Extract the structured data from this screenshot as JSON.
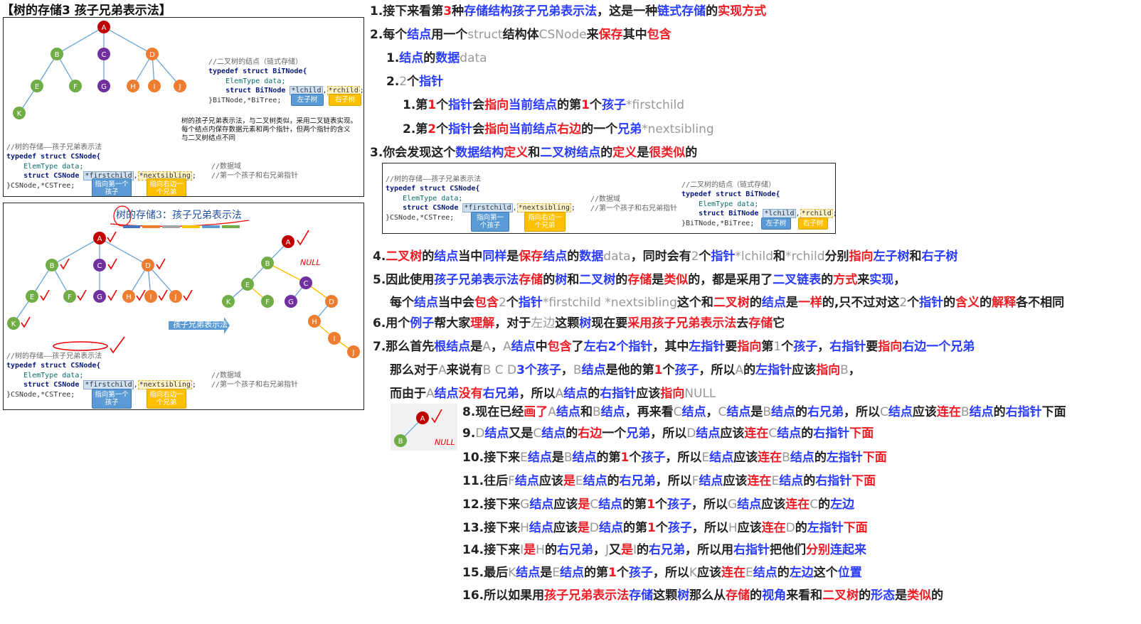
{
  "title": "【树的存储3 孩子兄弟表示法】",
  "panel1": {
    "bitree_comment": "//二叉树的结点（链式存储）",
    "bitree_struct": "typedef struct BiTNode{",
    "bitree_data": "    ElemType data;",
    "bitree_ptr_prefix": "    struct BiTNode ",
    "bitree_lchild": "*lchild",
    "bitree_rchild": "*rchild",
    "bitree_end": "}BiTNode,*BiTree;",
    "tag_left": "左子树",
    "tag_right": "右子树",
    "desc_line1": "树的孩子兄弟表示法，与二叉树类似，采用二叉链表实现。",
    "desc_line2": "每个结点内保存数据元素和两个指针，但两个指针的含义",
    "desc_line3": "与二叉树结点不同",
    "cs_comment": "//树的存储——孩子兄弟表示法",
    "cs_struct": "typedef struct CSNode{",
    "cs_data": "    ElemType data;",
    "cs_ptr_prefix": "    struct CSNode ",
    "cs_first": "*firstchild",
    "cs_next": "*nextsibling",
    "cs_end": "}CSNode,*CSTree;",
    "cs_data_comment": "//数据域",
    "cs_ptr_comment": "//第一个孩子和右兄弟指针",
    "tag_first": "指向第一个孩子",
    "tag_next": "指向右边一个兄弟"
  },
  "panel2": {
    "heading": "树的存储3：孩子兄弟表示法",
    "arrow_label": "孩子兄弟表示法",
    "null_label": "NULL"
  },
  "tree_nodes": [
    "A",
    "B",
    "C",
    "D",
    "E",
    "F",
    "G",
    "H",
    "I",
    "J",
    "K"
  ],
  "colors": {
    "node_a": "#c00000",
    "node_b": "#70ad47",
    "node_c": "#7030a0",
    "node_d": "#ed7d31",
    "link_blue": "#5b9bd5",
    "link_yellow": "#ffc000",
    "text_blue": "#2a3cff",
    "text_red": "#ee1c25"
  },
  "mini_panel": {
    "comment": "//树的存储——孩子兄弟表示法",
    "struct": "typedef struct CSNode{",
    "data": "    ElemType data;",
    "ptr_prefix": "    struct CSNode ",
    "first": "*firstchild",
    "next": "*nextsibling",
    "end": "}CSNode,*CSTree;",
    "data_comment": "//数据域",
    "ptr_comment": "//第一个孩子和右兄弟指针",
    "tag_first": "指向第一个孩子",
    "tag_next": "指向右边一个兄弟",
    "bi_comment": "//二叉树的结点（链式存储）",
    "bi_struct": "typedef struct BiTNode{",
    "bi_data": "    ElemType data;",
    "bi_prefix": "    struct BiTNode ",
    "bi_l": "*lchild",
    "bi_r": "*rchild",
    "bi_end": "}BiTNode,*BiTree;",
    "tag_left": "左子树",
    "tag_right": "右子树"
  },
  "notes": {
    "l1": [
      [
        "1.接下来看第",
        ""
      ],
      [
        "3",
        "r"
      ],
      [
        "种",
        ""
      ],
      [
        "存储结构孩子兄弟表示法",
        "b"
      ],
      [
        "，这是一种",
        ""
      ],
      [
        "链式存储",
        "b"
      ],
      [
        "的",
        ""
      ],
      [
        "实现方式",
        "r"
      ]
    ],
    "l2": [
      [
        "2.每个",
        ""
      ],
      [
        "结点",
        "b"
      ],
      [
        "用一个",
        ""
      ],
      [
        "struct",
        "g"
      ],
      [
        "结构体",
        ""
      ],
      [
        "CSNode",
        "g"
      ],
      [
        "来",
        ""
      ],
      [
        "保存",
        "r"
      ],
      [
        "其中",
        ""
      ],
      [
        "包含",
        "r"
      ]
    ],
    "l3": [
      [
        "1.",
        ""
      ],
      [
        "结点",
        "b"
      ],
      [
        "的",
        ""
      ],
      [
        "数据",
        "b"
      ],
      [
        "data",
        "g"
      ]
    ],
    "l4": [
      [
        "2.",
        ""
      ],
      [
        "2",
        "g"
      ],
      [
        "个",
        ""
      ],
      [
        "指针",
        "b"
      ]
    ],
    "l5": [
      [
        "1.第",
        ""
      ],
      [
        "1",
        "r"
      ],
      [
        "个",
        ""
      ],
      [
        "指针",
        "b"
      ],
      [
        "会",
        ""
      ],
      [
        "指向",
        "r"
      ],
      [
        "当前结点",
        "b"
      ],
      [
        "的第",
        ""
      ],
      [
        "1",
        "r"
      ],
      [
        "个",
        ""
      ],
      [
        "孩子",
        "b"
      ],
      [
        "*firstchild",
        "g"
      ]
    ],
    "l6": [
      [
        "2.第",
        ""
      ],
      [
        "2",
        "r"
      ],
      [
        "个",
        ""
      ],
      [
        "指针",
        "b"
      ],
      [
        "会",
        ""
      ],
      [
        "指向",
        "r"
      ],
      [
        "当前结点",
        "b"
      ],
      [
        "右边",
        "r"
      ],
      [
        "的一个",
        ""
      ],
      [
        "兄弟",
        "b"
      ],
      [
        "*nextsibling",
        "g"
      ]
    ],
    "l7": [
      [
        "3.你会发现这个",
        ""
      ],
      [
        "数据结构",
        "b"
      ],
      [
        "定义",
        "r"
      ],
      [
        "和",
        ""
      ],
      [
        "二叉树结点",
        "b"
      ],
      [
        "的",
        ""
      ],
      [
        "定义",
        "r"
      ],
      [
        "是",
        ""
      ],
      [
        "很类似",
        "r"
      ],
      [
        "的",
        ""
      ]
    ],
    "l8": [
      [
        "4.",
        ""
      ],
      [
        "二叉树",
        "r"
      ],
      [
        "的",
        ""
      ],
      [
        "结点",
        "b"
      ],
      [
        "当中",
        ""
      ],
      [
        "同样",
        "b"
      ],
      [
        "是",
        ""
      ],
      [
        "保存",
        "r"
      ],
      [
        "结点",
        "b"
      ],
      [
        "的",
        ""
      ],
      [
        "数据",
        "b"
      ],
      [
        "data",
        "g"
      ],
      [
        "，同时会有",
        ""
      ],
      [
        "2",
        "g"
      ],
      [
        "个",
        ""
      ],
      [
        "指针",
        "b"
      ],
      [
        "*lchild",
        "g"
      ],
      [
        "和",
        ""
      ],
      [
        "*rchild",
        "g"
      ],
      [
        "分别",
        ""
      ],
      [
        "指向",
        "r"
      ],
      [
        "左子树",
        "b"
      ],
      [
        "和",
        ""
      ],
      [
        "右子树",
        "b"
      ]
    ],
    "l9": [
      [
        "5.因此使用",
        ""
      ],
      [
        "孩子兄弟表示法",
        "b"
      ],
      [
        "存储",
        "r"
      ],
      [
        "的",
        ""
      ],
      [
        "树",
        "b"
      ],
      [
        "和",
        ""
      ],
      [
        "二叉树",
        "b"
      ],
      [
        "的",
        ""
      ],
      [
        "存储",
        "r"
      ],
      [
        "是",
        ""
      ],
      [
        "类似",
        "r"
      ],
      [
        "的，都是采用了",
        ""
      ],
      [
        "二叉链表",
        "b"
      ],
      [
        "的",
        ""
      ],
      [
        "方式",
        "r"
      ],
      [
        "来",
        ""
      ],
      [
        "实现",
        "b"
      ],
      [
        "，",
        ""
      ]
    ],
    "l10": [
      [
        "每个",
        ""
      ],
      [
        "结点",
        "b"
      ],
      [
        "当中会",
        ""
      ],
      [
        "包含",
        "r"
      ],
      [
        "2",
        "g"
      ],
      [
        "个",
        ""
      ],
      [
        "指针",
        "b"
      ],
      [
        "*firstchild *nextsibling",
        "g"
      ],
      [
        "这个和",
        ""
      ],
      [
        "二叉树",
        "r"
      ],
      [
        "的",
        ""
      ],
      [
        "结点",
        "b"
      ],
      [
        "是",
        ""
      ],
      [
        "一样",
        "r"
      ],
      [
        "的,只不过对这",
        ""
      ],
      [
        "2",
        "g"
      ],
      [
        "个",
        ""
      ],
      [
        "指针",
        "b"
      ],
      [
        "的",
        ""
      ],
      [
        "含义",
        "r"
      ],
      [
        "的",
        ""
      ],
      [
        "解释",
        "r"
      ],
      [
        "各不相同",
        ""
      ]
    ],
    "l11": [
      [
        "6.用个",
        ""
      ],
      [
        "例子",
        "b"
      ],
      [
        "帮大家",
        ""
      ],
      [
        "理解",
        "r"
      ],
      [
        "，对于",
        ""
      ],
      [
        "左边",
        "g"
      ],
      [
        "这颗",
        ""
      ],
      [
        "树",
        "b"
      ],
      [
        "现在要",
        ""
      ],
      [
        "采用孩子兄弟表示法",
        "r"
      ],
      [
        "去",
        ""
      ],
      [
        "存储",
        "r"
      ],
      [
        "它",
        ""
      ]
    ],
    "l12": [
      [
        "7.那么首先",
        ""
      ],
      [
        "根结点",
        "b"
      ],
      [
        "是",
        ""
      ],
      [
        "A",
        "g"
      ],
      [
        "，",
        ""
      ],
      [
        "A",
        "g"
      ],
      [
        "结点",
        "b"
      ],
      [
        "中",
        ""
      ],
      [
        "包含",
        "r"
      ],
      [
        "了",
        ""
      ],
      [
        "左右2个指针",
        "b"
      ],
      [
        "，其中",
        ""
      ],
      [
        "左指针",
        "b"
      ],
      [
        "要",
        ""
      ],
      [
        "指向",
        "r"
      ],
      [
        "第",
        ""
      ],
      [
        "1",
        "g"
      ],
      [
        "个",
        ""
      ],
      [
        "孩子",
        "b"
      ],
      [
        "，",
        ""
      ],
      [
        "右指针",
        "b"
      ],
      [
        "要",
        ""
      ],
      [
        "指向",
        "r"
      ],
      [
        "右边一个兄弟",
        "b"
      ]
    ],
    "l13": [
      [
        "那么对于",
        ""
      ],
      [
        "A",
        "g"
      ],
      [
        "来说有",
        ""
      ],
      [
        "B C D",
        "g"
      ],
      [
        "3个孩子",
        "b"
      ],
      [
        "，",
        ""
      ],
      [
        "B",
        "g"
      ],
      [
        "结点",
        "b"
      ],
      [
        "是他的第",
        ""
      ],
      [
        "1",
        "r"
      ],
      [
        "个",
        ""
      ],
      [
        "孩子",
        "b"
      ],
      [
        "，所以",
        ""
      ],
      [
        "A",
        "g"
      ],
      [
        "的",
        ""
      ],
      [
        "左指针",
        "b"
      ],
      [
        "应该",
        ""
      ],
      [
        "指向",
        "r"
      ],
      [
        "B",
        "g"
      ],
      [
        "，",
        ""
      ]
    ],
    "l14": [
      [
        "而由于",
        ""
      ],
      [
        "A",
        "g"
      ],
      [
        "结点",
        "b"
      ],
      [
        "没有",
        "r"
      ],
      [
        "右兄弟",
        "b"
      ],
      [
        "，所以",
        ""
      ],
      [
        "A",
        "g"
      ],
      [
        "结点",
        "b"
      ],
      [
        "的",
        ""
      ],
      [
        "右指针",
        "b"
      ],
      [
        "应该",
        ""
      ],
      [
        "指向",
        "r"
      ],
      [
        "NULL",
        "g"
      ]
    ],
    "l15": [
      [
        "8.现在已经",
        ""
      ],
      [
        "画了",
        "r"
      ],
      [
        "A",
        "g"
      ],
      [
        "结点",
        "b"
      ],
      [
        "和",
        ""
      ],
      [
        "B",
        "g"
      ],
      [
        "结点",
        "b"
      ],
      [
        "，再来看",
        ""
      ],
      [
        "C",
        "g"
      ],
      [
        "结点",
        "b"
      ],
      [
        "，",
        ""
      ],
      [
        "C",
        "g"
      ],
      [
        "结点",
        "b"
      ],
      [
        "是",
        ""
      ],
      [
        "B",
        "g"
      ],
      [
        "结点",
        "b"
      ],
      [
        "的",
        ""
      ],
      [
        "右兄弟",
        "b"
      ],
      [
        "，所以",
        ""
      ],
      [
        "C",
        "g"
      ],
      [
        "结点",
        "b"
      ],
      [
        "应该",
        ""
      ],
      [
        "连在",
        "r"
      ],
      [
        "B",
        "g"
      ],
      [
        "结点",
        "b"
      ],
      [
        "的",
        ""
      ],
      [
        "右指针",
        "b"
      ],
      [
        "下面",
        ""
      ]
    ],
    "l16": [
      [
        "9.",
        ""
      ],
      [
        "D",
        "g"
      ],
      [
        "结点",
        "b"
      ],
      [
        "又是",
        ""
      ],
      [
        "C",
        "g"
      ],
      [
        "结点",
        "b"
      ],
      [
        "的",
        ""
      ],
      [
        "右边",
        "r"
      ],
      [
        "一个",
        ""
      ],
      [
        "兄弟",
        "b"
      ],
      [
        "，所以",
        ""
      ],
      [
        "D",
        "g"
      ],
      [
        "结点",
        "b"
      ],
      [
        "应该",
        ""
      ],
      [
        "连在",
        "r"
      ],
      [
        "C",
        "g"
      ],
      [
        "结点",
        "b"
      ],
      [
        "的",
        ""
      ],
      [
        "右指针",
        "b"
      ],
      [
        "下面",
        "r"
      ]
    ],
    "l17": [
      [
        "10.接下来",
        ""
      ],
      [
        "E",
        "g"
      ],
      [
        "结点",
        "b"
      ],
      [
        "是",
        ""
      ],
      [
        "B",
        "g"
      ],
      [
        "结点",
        "b"
      ],
      [
        "的第",
        ""
      ],
      [
        "1",
        "r"
      ],
      [
        "个",
        ""
      ],
      [
        "孩子",
        "b"
      ],
      [
        "，所以",
        ""
      ],
      [
        "E",
        "g"
      ],
      [
        "结点",
        "b"
      ],
      [
        "应该",
        ""
      ],
      [
        "连在",
        "r"
      ],
      [
        "B",
        "g"
      ],
      [
        "结点",
        "b"
      ],
      [
        "的",
        ""
      ],
      [
        "左指针",
        "b"
      ],
      [
        "下面",
        "r"
      ]
    ],
    "l18": [
      [
        "11.往后",
        ""
      ],
      [
        "F",
        "g"
      ],
      [
        "结点",
        "b"
      ],
      [
        "应该",
        ""
      ],
      [
        "是",
        "r"
      ],
      [
        "E",
        "g"
      ],
      [
        "结点",
        "b"
      ],
      [
        "的",
        ""
      ],
      [
        "右兄弟",
        "b"
      ],
      [
        "，所以",
        ""
      ],
      [
        "F",
        "g"
      ],
      [
        "结点",
        "b"
      ],
      [
        "应该",
        ""
      ],
      [
        "连在",
        "r"
      ],
      [
        "E",
        "g"
      ],
      [
        "结点",
        "b"
      ],
      [
        "的",
        ""
      ],
      [
        "右指针",
        "b"
      ],
      [
        "下面",
        "r"
      ]
    ],
    "l19": [
      [
        "12.接下来",
        ""
      ],
      [
        "G",
        "g"
      ],
      [
        "结点",
        "b"
      ],
      [
        "应该",
        ""
      ],
      [
        "是",
        "r"
      ],
      [
        "C",
        "g"
      ],
      [
        "结点",
        "b"
      ],
      [
        "的第",
        ""
      ],
      [
        "1",
        "r"
      ],
      [
        "个",
        ""
      ],
      [
        "孩子",
        "b"
      ],
      [
        "，所以",
        ""
      ],
      [
        "G",
        "g"
      ],
      [
        "结点",
        "b"
      ],
      [
        "应该",
        ""
      ],
      [
        "连在",
        "r"
      ],
      [
        "C",
        "g"
      ],
      [
        "的",
        ""
      ],
      [
        "左边",
        "b"
      ]
    ],
    "l20": [
      [
        "13.接下来",
        ""
      ],
      [
        "H",
        "g"
      ],
      [
        "结点",
        "b"
      ],
      [
        "应该",
        ""
      ],
      [
        "是",
        "r"
      ],
      [
        "D",
        "g"
      ],
      [
        "结点",
        "b"
      ],
      [
        "的第",
        ""
      ],
      [
        "1",
        "r"
      ],
      [
        "个",
        ""
      ],
      [
        "孩子",
        "b"
      ],
      [
        "，所以",
        ""
      ],
      [
        "H",
        "g"
      ],
      [
        "应该",
        ""
      ],
      [
        "连在",
        "r"
      ],
      [
        "D",
        "g"
      ],
      [
        "的",
        ""
      ],
      [
        "左指针",
        "b"
      ],
      [
        "下面",
        "r"
      ]
    ],
    "l21": [
      [
        "14.接下来",
        ""
      ],
      [
        "I",
        "g"
      ],
      [
        "是",
        "r"
      ],
      [
        "H",
        "g"
      ],
      [
        "的",
        ""
      ],
      [
        "右兄弟",
        "b"
      ],
      [
        "，",
        ""
      ],
      [
        "J",
        "g"
      ],
      [
        "又",
        ""
      ],
      [
        "是",
        "r"
      ],
      [
        "I",
        "g"
      ],
      [
        "的",
        ""
      ],
      [
        "右兄弟",
        "b"
      ],
      [
        "，所以用",
        ""
      ],
      [
        "右指针",
        "b"
      ],
      [
        "把他们",
        ""
      ],
      [
        "分别",
        "r"
      ],
      [
        "连起来",
        "b"
      ]
    ],
    "l22": [
      [
        "15.最后",
        ""
      ],
      [
        "K",
        "g"
      ],
      [
        "结点",
        "b"
      ],
      [
        "是",
        ""
      ],
      [
        "E",
        "g"
      ],
      [
        "结点",
        "b"
      ],
      [
        "的第",
        ""
      ],
      [
        "1",
        "r"
      ],
      [
        "个",
        ""
      ],
      [
        "孩子",
        "b"
      ],
      [
        "，所以",
        ""
      ],
      [
        "K",
        "g"
      ],
      [
        "应该",
        ""
      ],
      [
        "连在",
        "r"
      ],
      [
        "E",
        "g"
      ],
      [
        "结点",
        "b"
      ],
      [
        "的",
        ""
      ],
      [
        "左边",
        "b"
      ],
      [
        "这个",
        ""
      ],
      [
        "位置",
        "b"
      ]
    ],
    "l23": [
      [
        "16.所以如果用",
        ""
      ],
      [
        "孩子兄弟表示法",
        "r"
      ],
      [
        "存储",
        "b"
      ],
      [
        "这颗",
        ""
      ],
      [
        "树",
        "b"
      ],
      [
        "那么从",
        ""
      ],
      [
        "存储",
        "r"
      ],
      [
        "的",
        ""
      ],
      [
        "视角",
        "b"
      ],
      [
        "来看和",
        ""
      ],
      [
        "二叉树",
        "r"
      ],
      [
        "的",
        ""
      ],
      [
        "形态",
        "b"
      ],
      [
        "是",
        ""
      ],
      [
        "类似",
        "r"
      ],
      [
        "的",
        ""
      ]
    ]
  }
}
